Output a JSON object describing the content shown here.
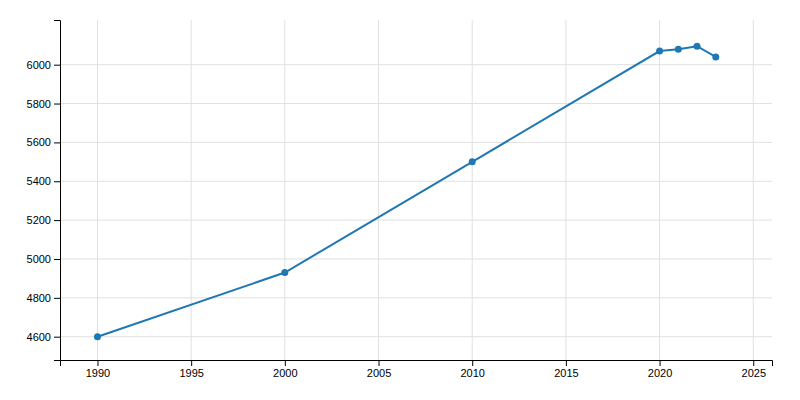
{
  "chart_data": {
    "type": "line",
    "x": [
      1990,
      2000,
      2010,
      2020,
      2021,
      2022,
      2023
    ],
    "values": [
      4600,
      4930,
      5500,
      6070,
      6080,
      6095,
      6040
    ],
    "xlim": [
      1988,
      2026
    ],
    "ylim": [
      4480,
      6230
    ],
    "xticks": [
      1990,
      1995,
      2000,
      2005,
      2010,
      2015,
      2020,
      2025
    ],
    "yticks": [
      4600,
      4800,
      5000,
      5200,
      5400,
      5600,
      5800,
      6000
    ],
    "grid": true,
    "marker": "circle"
  }
}
